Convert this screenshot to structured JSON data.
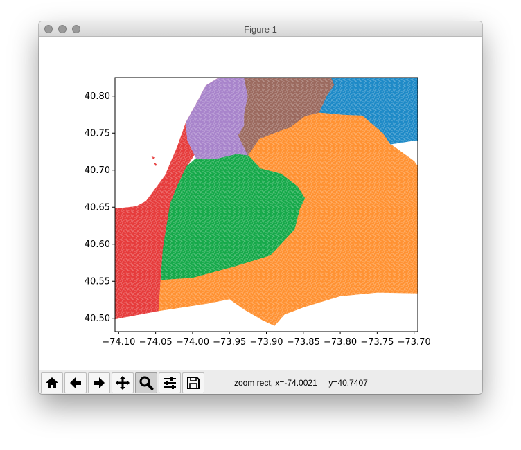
{
  "window": {
    "title": "Figure 1"
  },
  "toolbar": {
    "buttons": [
      {
        "name": "home",
        "icon": "home-icon"
      },
      {
        "name": "back",
        "icon": "arrow-left-icon"
      },
      {
        "name": "forward",
        "icon": "arrow-right-icon"
      },
      {
        "name": "pan",
        "icon": "move-icon"
      },
      {
        "name": "zoom",
        "icon": "magnifier-icon",
        "active": true
      },
      {
        "name": "configure-subplots",
        "icon": "sliders-icon"
      },
      {
        "name": "save",
        "icon": "floppy-disk-icon"
      }
    ],
    "status": {
      "mode": "zoom rect,",
      "x": "x=-74.0021",
      "y": "y=40.7407"
    }
  },
  "colors": {
    "red": "#e63c3c",
    "orange": "#ff9233",
    "green": "#16a94a",
    "purple": "#a884cb",
    "brown": "#9b6a5f",
    "blue": "#1e8ac7"
  },
  "chart_data": {
    "type": "map",
    "xlim": [
      -74.105,
      -73.695
    ],
    "ylim": [
      40.482,
      40.825
    ],
    "xticks": [
      "−74.10",
      "−74.05",
      "−74.00",
      "−73.95",
      "−73.90",
      "−73.85",
      "−73.80",
      "−73.75",
      "−73.70"
    ],
    "xtick_values": [
      -74.1,
      -74.05,
      -74.0,
      -73.95,
      -73.9,
      -73.85,
      -73.8,
      -73.75,
      -73.7
    ],
    "yticks": [
      "40.50",
      "40.55",
      "40.60",
      "40.65",
      "40.70",
      "40.75",
      "40.80"
    ],
    "ytick_values": [
      40.5,
      40.55,
      40.6,
      40.65,
      40.7,
      40.75,
      40.8
    ],
    "regions": [
      {
        "color": "red",
        "polygons": [
          [
            [
              -74.105,
              40.499
            ],
            [
              -74.105,
              40.648
            ],
            [
              -74.094,
              40.649
            ],
            [
              -74.076,
              40.651
            ],
            [
              -74.063,
              40.658
            ],
            [
              -74.037,
              40.693
            ],
            [
              -74.02,
              40.733
            ],
            [
              -74.009,
              40.764
            ],
            [
              -73.993,
              40.793
            ],
            [
              -73.982,
              40.814
            ],
            [
              -73.964,
              40.825
            ],
            [
              -73.948,
              40.825
            ],
            [
              -73.968,
              40.799
            ],
            [
              -73.978,
              40.775
            ],
            [
              -73.988,
              40.758
            ],
            [
              -73.991,
              40.731
            ],
            [
              -74.008,
              40.705
            ],
            [
              -74.02,
              40.68
            ],
            [
              -74.03,
              40.655
            ],
            [
              -74.035,
              40.625
            ],
            [
              -74.04,
              40.594
            ],
            [
              -74.043,
              40.555
            ],
            [
              -74.046,
              40.51
            ]
          ],
          [
            [
              -74.015,
              40.65
            ],
            [
              -74.0,
              40.672
            ],
            [
              -73.975,
              40.668
            ],
            [
              -73.955,
              40.662
            ],
            [
              -73.944,
              40.652
            ],
            [
              -73.937,
              40.643
            ],
            [
              -73.928,
              40.625
            ],
            [
              -73.92,
              40.605
            ],
            [
              -73.95,
              40.598
            ],
            [
              -73.975,
              40.601
            ],
            [
              -73.996,
              40.604
            ],
            [
              -74.015,
              40.618
            ],
            [
              -74.026,
              40.641
            ]
          ],
          [
            [
              -74.052,
              40.71
            ],
            [
              -74.05,
              40.706
            ],
            [
              -74.048,
              40.707
            ]
          ],
          [
            [
              -74.055,
              40.718
            ],
            [
              -74.053,
              40.715
            ],
            [
              -74.051,
              40.717
            ]
          ]
        ]
      },
      {
        "color": "orange",
        "polygons": [
          [
            [
              -74.046,
              40.51
            ],
            [
              -73.98,
              40.52
            ],
            [
              -73.95,
              40.526
            ],
            [
              -73.93,
              40.512
            ],
            [
              -73.906,
              40.498
            ],
            [
              -73.889,
              40.49
            ],
            [
              -73.876,
              40.505
            ],
            [
              -73.85,
              40.515
            ],
            [
              -73.8,
              40.53
            ],
            [
              -73.75,
              40.535
            ],
            [
              -73.695,
              40.534
            ],
            [
              -73.695,
              40.705
            ],
            [
              -73.7,
              40.712
            ],
            [
              -73.732,
              40.735
            ],
            [
              -73.742,
              40.75
            ],
            [
              -73.77,
              40.774
            ],
            [
              -73.796,
              40.775
            ],
            [
              -73.828,
              40.778
            ],
            [
              -73.848,
              40.773
            ],
            [
              -73.868,
              40.758
            ],
            [
              -73.885,
              40.752
            ],
            [
              -73.91,
              40.742
            ],
            [
              -73.925,
              40.72
            ],
            [
              -73.908,
              40.702
            ],
            [
              -73.88,
              40.695
            ],
            [
              -73.858,
              40.678
            ],
            [
              -73.848,
              40.662
            ],
            [
              -73.855,
              40.648
            ],
            [
              -73.862,
              40.62
            ],
            [
              -73.895,
              40.585
            ],
            [
              -73.944,
              40.57
            ],
            [
              -74.0,
              40.555
            ],
            [
              -74.043,
              40.552
            ]
          ]
        ]
      },
      {
        "color": "green",
        "polygons": [
          [
            [
              -74.043,
              40.552
            ],
            [
              -74.0,
              40.555
            ],
            [
              -73.944,
              40.57
            ],
            [
              -73.895,
              40.585
            ],
            [
              -73.862,
              40.62
            ],
            [
              -73.855,
              40.648
            ],
            [
              -73.848,
              40.662
            ],
            [
              -73.858,
              40.678
            ],
            [
              -73.88,
              40.695
            ],
            [
              -73.908,
              40.702
            ],
            [
              -73.925,
              40.72
            ],
            [
              -73.94,
              40.722
            ],
            [
              -73.97,
              40.715
            ],
            [
              -73.995,
              40.716
            ],
            [
              -74.008,
              40.705
            ],
            [
              -74.02,
              40.68
            ],
            [
              -74.03,
              40.655
            ],
            [
              -74.035,
              40.625
            ],
            [
              -74.04,
              40.594
            ]
          ],
          [
            [
              -74.015,
              40.65
            ],
            [
              -74.0,
              40.672
            ],
            [
              -73.975,
              40.668
            ],
            [
              -73.955,
              40.662
            ],
            [
              -73.944,
              40.652
            ],
            [
              -73.937,
              40.643
            ],
            [
              -73.928,
              40.625
            ],
            [
              -73.92,
              40.605
            ],
            [
              -73.95,
              40.598
            ],
            [
              -73.975,
              40.601
            ],
            [
              -73.996,
              40.604
            ],
            [
              -74.015,
              40.618
            ],
            [
              -74.026,
              40.641
            ]
          ]
        ]
      },
      {
        "color": "purple",
        "polygons": [
          [
            [
              -73.995,
              40.716
            ],
            [
              -73.97,
              40.715
            ],
            [
              -73.94,
              40.722
            ],
            [
              -73.925,
              40.72
            ],
            [
              -73.938,
              40.747
            ],
            [
              -73.93,
              40.76
            ],
            [
              -73.93,
              40.775
            ],
            [
              -73.925,
              40.8
            ],
            [
              -73.93,
              40.825
            ],
            [
              -73.964,
              40.825
            ],
            [
              -73.982,
              40.814
            ],
            [
              -73.993,
              40.793
            ],
            [
              -74.009,
              40.764
            ],
            [
              -74.007,
              40.74
            ]
          ]
        ]
      },
      {
        "color": "brown",
        "polygons": [
          [
            [
              -73.925,
              40.72
            ],
            [
              -73.91,
              40.742
            ],
            [
              -73.885,
              40.752
            ],
            [
              -73.868,
              40.758
            ],
            [
              -73.848,
              40.773
            ],
            [
              -73.828,
              40.778
            ],
            [
              -73.818,
              40.8
            ],
            [
              -73.808,
              40.815
            ],
            [
              -73.812,
              40.825
            ],
            [
              -73.93,
              40.825
            ],
            [
              -73.925,
              40.8
            ],
            [
              -73.93,
              40.775
            ],
            [
              -73.93,
              40.76
            ],
            [
              -73.938,
              40.747
            ]
          ]
        ]
      },
      {
        "color": "blue",
        "polygons": [
          [
            [
              -73.828,
              40.778
            ],
            [
              -73.796,
              40.775
            ],
            [
              -73.77,
              40.774
            ],
            [
              -73.742,
              40.75
            ],
            [
              -73.732,
              40.735
            ],
            [
              -73.7,
              40.74
            ],
            [
              -73.695,
              40.74
            ],
            [
              -73.695,
              40.825
            ],
            [
              -73.812,
              40.825
            ],
            [
              -73.808,
              40.815
            ],
            [
              -73.818,
              40.8
            ]
          ]
        ]
      }
    ]
  }
}
